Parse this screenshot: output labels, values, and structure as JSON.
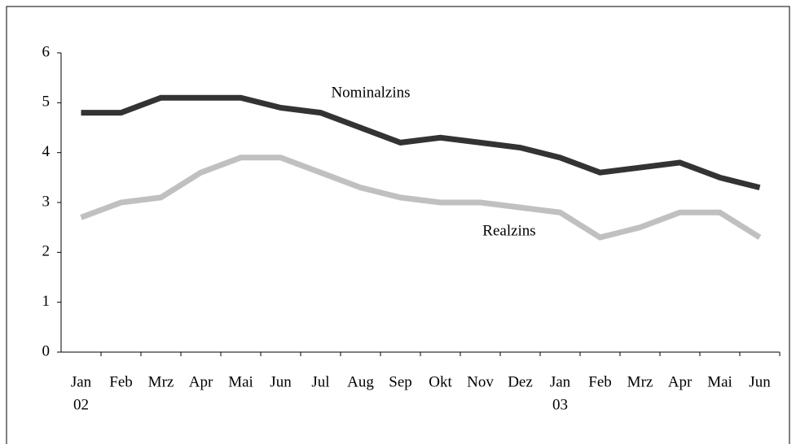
{
  "chart_data": {
    "type": "line",
    "categories": [
      "Jan",
      "Feb",
      "Mrz",
      "Apr",
      "Mai",
      "Jun",
      "Jul",
      "Aug",
      "Sep",
      "Okt",
      "Nov",
      "Dez",
      "Jan",
      "Feb",
      "Mrz",
      "Apr",
      "Mai",
      "Jun"
    ],
    "year_labels": [
      "02",
      null,
      null,
      null,
      null,
      null,
      null,
      null,
      null,
      null,
      null,
      null,
      "03",
      null,
      null,
      null,
      null,
      null
    ],
    "series": [
      {
        "name": "Nominalzins",
        "color": "#333333",
        "values": [
          4.8,
          4.8,
          5.1,
          5.1,
          5.1,
          4.9,
          4.8,
          4.5,
          4.2,
          4.3,
          4.2,
          4.1,
          3.9,
          3.6,
          3.7,
          3.8,
          3.5,
          3.3
        ]
      },
      {
        "name": "Realzins",
        "color": "#c0c0c0",
        "values": [
          2.7,
          3.0,
          3.1,
          3.6,
          3.9,
          3.9,
          3.6,
          3.3,
          3.1,
          3.0,
          3.0,
          2.9,
          2.8,
          2.3,
          2.5,
          2.8,
          2.8,
          2.3
        ]
      }
    ],
    "ylim": [
      0,
      6
    ],
    "yticks": [
      0,
      1,
      2,
      3,
      4,
      5,
      6
    ],
    "grid": false
  }
}
